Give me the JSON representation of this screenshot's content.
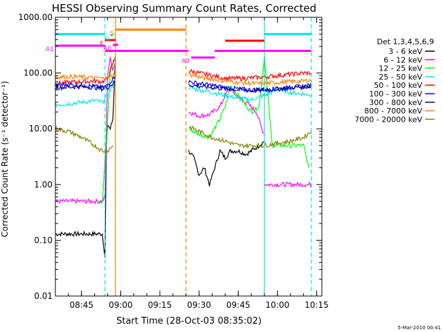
{
  "chart_data": {
    "type": "line",
    "title": "HESSI Observing Summary Count Rates, Corrected",
    "xlabel": "Start Time (28-Oct-03 08:35:02)",
    "ylabel": "Corrected Count Rate (s⁻¹ detector⁻¹)",
    "yscale": "log",
    "ylim": [
      0.01,
      1000
    ],
    "xlim": [
      "08:35:02",
      "10:17"
    ],
    "grid": false,
    "legend_position": "right",
    "x_ticks": [
      "08:45",
      "09:00",
      "09:15",
      "09:30",
      "09:45",
      "10:00",
      "10:15"
    ],
    "y_ticks": [
      "0.01",
      "0.10",
      "1.00",
      "10.00",
      "100.00",
      "1000.00"
    ],
    "legend_title": "Det 1,3,4,5,6,9",
    "timestamp": "5-Mar-2010 00:41",
    "vlines": [
      {
        "time": "08:54",
        "color": "#00e5e5",
        "style": "dashed"
      },
      {
        "time": "08:58",
        "color": "#ff8000",
        "style": "solid"
      },
      {
        "time": "09:25",
        "color": "#ff8000",
        "style": "dashed"
      },
      {
        "time": "09:55",
        "color": "#00e5e5",
        "style": "solid"
      },
      {
        "time": "10:13",
        "color": "#00e5e5",
        "style": "dashed"
      }
    ],
    "flag_bars": [
      {
        "label": "",
        "color": "#00e5e5",
        "y": 500,
        "start": "08:35",
        "end": "08:54"
      },
      {
        "label": "",
        "color": "#00e5e5",
        "y": 500,
        "start": "09:55",
        "end": "10:13"
      },
      {
        "label": "S",
        "color": "#ff8000",
        "y": 600,
        "start": "08:58",
        "end": "09:25"
      },
      {
        "label": "N",
        "color": "#00e5e5",
        "y": 480,
        "start": "08:56",
        "end": "08:57"
      },
      {
        "label": "F",
        "color": "#ff0000",
        "y": 390,
        "start": "08:54",
        "end": "08:58"
      },
      {
        "label": "",
        "color": "#ff0000",
        "y": 380,
        "start": "09:40",
        "end": "09:55"
      },
      {
        "label": "A0",
        "color": "#ff00ff",
        "y": 320,
        "start": "08:57",
        "end": "08:59"
      },
      {
        "label": "A1",
        "color": "#ff00ff",
        "y": 310,
        "start": "08:35",
        "end": "08:54"
      },
      {
        "label": "",
        "color": "#ff00ff",
        "y": 250,
        "start": "08:54",
        "end": "09:26"
      },
      {
        "label": "A3",
        "color": "#ff00ff",
        "y": 190,
        "start": "09:27",
        "end": "09:36"
      },
      {
        "label": "",
        "color": "#ff00ff",
        "y": 250,
        "start": "09:36",
        "end": "10:13"
      }
    ],
    "series": [
      {
        "name": "3 - 6 keV",
        "color": "#000000",
        "segments": [
          [
            [
              "08:35",
              0.13
            ],
            [
              "08:44",
              0.13
            ],
            [
              "08:53",
              0.13
            ],
            [
              "08:54",
              0.05
            ],
            [
              "08:54.5",
              5
            ],
            [
              "08:55",
              12
            ],
            [
              "08:56",
              10
            ],
            [
              "08:57",
              15
            ],
            [
              "08:58",
              200
            ]
          ],
          [
            [
              "09:26",
              4
            ],
            [
              "09:28",
              3
            ],
            [
              "09:30",
              1.5
            ],
            [
              "09:32",
              2
            ],
            [
              "09:34",
              1.0
            ],
            [
              "09:36",
              2
            ],
            [
              "09:38",
              4
            ],
            [
              "09:40",
              3
            ],
            [
              "09:42",
              4
            ],
            [
              "09:45",
              4
            ],
            [
              "09:48",
              3.5
            ],
            [
              "09:50",
              4
            ],
            [
              "09:53",
              5
            ],
            [
              "09:55",
              6
            ]
          ]
        ]
      },
      {
        "name": "6 - 12 keV",
        "color": "#ff00ff",
        "segments": [
          [
            [
              "08:35",
              0.5
            ],
            [
              "08:53",
              0.5
            ],
            [
              "08:54",
              0.6
            ],
            [
              "08:55",
              100
            ],
            [
              "08:56",
              180
            ],
            [
              "08:57",
              120
            ],
            [
              "08:58",
              160
            ]
          ],
          [
            [
              "09:26",
              20
            ],
            [
              "09:30",
              17
            ],
            [
              "09:34",
              18
            ],
            [
              "09:38",
              25
            ],
            [
              "09:40",
              40
            ],
            [
              "09:42",
              55
            ],
            [
              "09:44",
              40
            ],
            [
              "09:48",
              30
            ],
            [
              "09:52",
              20
            ],
            [
              "09:54",
              10
            ],
            [
              "09:55",
              8
            ]
          ],
          [
            [
              "09:55",
              1
            ],
            [
              "10:13",
              1
            ]
          ]
        ]
      },
      {
        "name": "12 - 25 keV",
        "color": "#00ff00",
        "segments": [
          [
            [
              "08:51",
              0.5
            ],
            [
              "08:53",
              0.5
            ],
            [
              "08:54",
              3
            ],
            [
              "08:55",
              15
            ],
            [
              "08:56",
              100
            ],
            [
              "08:57",
              150
            ],
            [
              "08:58",
              210
            ]
          ],
          [
            [
              "09:26",
              10
            ],
            [
              "09:30",
              8
            ],
            [
              "09:34",
              7
            ],
            [
              "09:38",
              15
            ],
            [
              "09:40",
              25
            ],
            [
              "09:42",
              60
            ],
            [
              "09:44",
              45
            ],
            [
              "09:47",
              30
            ],
            [
              "09:50",
              20
            ],
            [
              "09:53",
              25
            ],
            [
              "09:55",
              200
            ],
            [
              "09:58",
              5
            ],
            [
              "10:05",
              5
            ],
            [
              "10:10",
              5
            ],
            [
              "10:12",
              2
            ]
          ]
        ]
      },
      {
        "name": "25 - 50 keV",
        "color": "#00e5e5",
        "segments": [
          [
            [
              "08:35",
              27
            ],
            [
              "08:40",
              28
            ],
            [
              "08:45",
              30
            ],
            [
              "08:50",
              32
            ],
            [
              "08:53",
              30
            ],
            [
              "08:55",
              40
            ],
            [
              "08:57",
              60
            ],
            [
              "08:58",
              80
            ]
          ],
          [
            [
              "09:26",
              55
            ],
            [
              "09:30",
              50
            ],
            [
              "09:35",
              45
            ],
            [
              "09:40",
              40
            ],
            [
              "09:45",
              35
            ],
            [
              "09:50",
              33
            ],
            [
              "09:55",
              40
            ],
            [
              "10:00",
              50
            ],
            [
              "10:05",
              45
            ],
            [
              "10:10",
              42
            ],
            [
              "10:13",
              40
            ]
          ]
        ]
      },
      {
        "name": "50 - 100 keV",
        "color": "#ff0000",
        "segments": [
          [
            [
              "08:35",
              65
            ],
            [
              "08:40",
              68
            ],
            [
              "08:45",
              70
            ],
            [
              "08:50",
              72
            ],
            [
              "08:53",
              70
            ],
            [
              "08:55",
              80
            ],
            [
              "08:57",
              150
            ],
            [
              "08:58",
              180
            ]
          ],
          [
            [
              "09:26",
              110
            ],
            [
              "09:30",
              100
            ],
            [
              "09:35",
              90
            ],
            [
              "09:40",
              80
            ],
            [
              "09:45",
              80
            ],
            [
              "09:50",
              82
            ],
            [
              "09:55",
              85
            ],
            [
              "10:00",
              90
            ],
            [
              "10:05",
              95
            ],
            [
              "10:10",
              100
            ],
            [
              "10:13",
              100
            ]
          ]
        ]
      },
      {
        "name": "100 - 300 keV",
        "color": "#0000ff",
        "segments": [
          [
            [
              "08:35",
              60
            ],
            [
              "08:40",
              62
            ],
            [
              "08:45",
              60
            ],
            [
              "08:50",
              58
            ],
            [
              "08:53",
              55
            ],
            [
              "08:55",
              60
            ],
            [
              "08:57",
              80
            ],
            [
              "08:58",
              100
            ]
          ],
          [
            [
              "09:26",
              70
            ],
            [
              "09:30",
              65
            ],
            [
              "09:35",
              60
            ],
            [
              "09:40",
              55
            ],
            [
              "09:45",
              52
            ],
            [
              "09:50",
              50
            ],
            [
              "09:55",
              50
            ],
            [
              "10:00",
              52
            ],
            [
              "10:05",
              55
            ],
            [
              "10:10",
              58
            ],
            [
              "10:13",
              60
            ]
          ]
        ]
      },
      {
        "name": "300 - 800 keV",
        "color": "#000090",
        "segments": [
          [
            [
              "08:35",
              55
            ],
            [
              "08:40",
              56
            ],
            [
              "08:45",
              57
            ],
            [
              "08:50",
              55
            ],
            [
              "08:53",
              52
            ],
            [
              "08:55",
              55
            ],
            [
              "08:57",
              65
            ],
            [
              "08:58",
              70
            ]
          ],
          [
            [
              "09:26",
              62
            ],
            [
              "09:30",
              58
            ],
            [
              "09:35",
              55
            ],
            [
              "09:40",
              52
            ],
            [
              "09:45",
              50
            ],
            [
              "09:50",
              48
            ],
            [
              "09:55",
              50
            ],
            [
              "10:00",
              52
            ],
            [
              "10:05",
              55
            ],
            [
              "10:10",
              56
            ],
            [
              "10:13",
              58
            ]
          ]
        ]
      },
      {
        "name": "800 - 7000 keV",
        "color": "#ff8000",
        "segments": [
          [
            [
              "08:35",
              85
            ],
            [
              "08:40",
              86
            ],
            [
              "08:45",
              85
            ],
            [
              "08:50",
              82
            ],
            [
              "08:53",
              80
            ],
            [
              "08:55",
              82
            ],
            [
              "08:57",
              90
            ],
            [
              "08:58",
              100
            ]
          ],
          [
            [
              "09:26",
              95
            ],
            [
              "09:30",
              85
            ],
            [
              "09:35",
              78
            ],
            [
              "09:40",
              72
            ],
            [
              "09:45",
              68
            ],
            [
              "09:50",
              65
            ],
            [
              "09:55",
              65
            ],
            [
              "10:00",
              68
            ],
            [
              "10:05",
              70
            ],
            [
              "10:10",
              72
            ],
            [
              "10:13",
              75
            ]
          ]
        ]
      },
      {
        "name": "7000 - 20000 keV",
        "color": "#808000",
        "segments": [
          [
            [
              "08:35",
              10
            ],
            [
              "08:40",
              9
            ],
            [
              "08:45",
              7
            ],
            [
              "08:50",
              5
            ],
            [
              "08:53",
              4
            ],
            [
              "08:55",
              4
            ],
            [
              "08:57",
              5
            ]
          ],
          [
            [
              "09:26",
              11
            ],
            [
              "09:30",
              9
            ],
            [
              "09:35",
              7
            ],
            [
              "09:40",
              6
            ],
            [
              "09:45",
              5
            ],
            [
              "09:50",
              5
            ],
            [
              "09:55",
              5
            ],
            [
              "10:00",
              5.5
            ],
            [
              "10:05",
              6
            ],
            [
              "10:10",
              7
            ],
            [
              "10:13",
              9
            ]
          ]
        ]
      }
    ]
  }
}
